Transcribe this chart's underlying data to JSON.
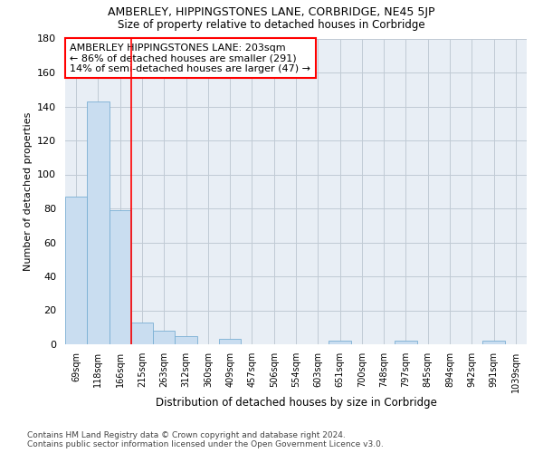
{
  "title": "AMBERLEY, HIPPINGSTONES LANE, CORBRIDGE, NE45 5JP",
  "subtitle": "Size of property relative to detached houses in Corbridge",
  "xlabel": "Distribution of detached houses by size in Corbridge",
  "ylabel": "Number of detached properties",
  "bar_color": "#c9ddf0",
  "bar_edgecolor": "#7aafd4",
  "plot_bg_color": "#e8eef5",
  "fig_bg_color": "#ffffff",
  "grid_color": "#c0cad4",
  "categories": [
    "69sqm",
    "118sqm",
    "166sqm",
    "215sqm",
    "263sqm",
    "312sqm",
    "360sqm",
    "409sqm",
    "457sqm",
    "506sqm",
    "554sqm",
    "603sqm",
    "651sqm",
    "700sqm",
    "748sqm",
    "797sqm",
    "845sqm",
    "894sqm",
    "942sqm",
    "991sqm",
    "1039sqm"
  ],
  "values": [
    87,
    143,
    79,
    13,
    8,
    5,
    0,
    3,
    0,
    0,
    0,
    0,
    2,
    0,
    0,
    2,
    0,
    0,
    0,
    2,
    0
  ],
  "ylim": [
    0,
    180
  ],
  "yticks": [
    0,
    20,
    40,
    60,
    80,
    100,
    120,
    140,
    160,
    180
  ],
  "red_line_x": 2.5,
  "annotation_line1": "AMBERLEY HIPPINGSTONES LANE: 203sqm",
  "annotation_line2": "← 86% of detached houses are smaller (291)",
  "annotation_line3": "14% of semi-detached houses are larger (47) →",
  "footer_line1": "Contains HM Land Registry data © Crown copyright and database right 2024.",
  "footer_line2": "Contains public sector information licensed under the Open Government Licence v3.0."
}
